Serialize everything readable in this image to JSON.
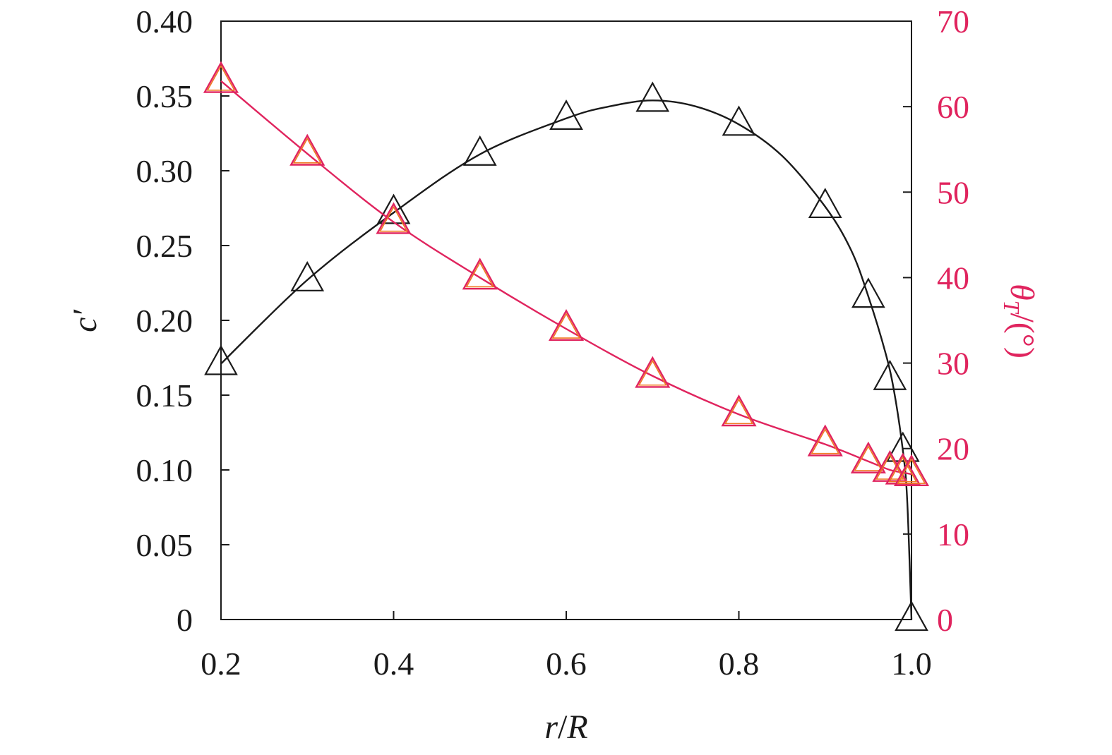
{
  "chart_data": {
    "type": "line",
    "title": "",
    "xlabel_parts": {
      "r": "r",
      "slash": "/",
      "R": "R"
    },
    "ylabel_left": "c′",
    "ylabel_right_parts": {
      "theta": "θ",
      "sub": "T",
      "rest": "/(°)"
    },
    "xlim": [
      0.2,
      1.0
    ],
    "ylim_left": [
      0,
      0.4
    ],
    "ylim_right": [
      0,
      70
    ],
    "x_ticks": [
      "0.2",
      "0.4",
      "0.6",
      "0.8",
      "1.0"
    ],
    "x_tick_values": [
      0.2,
      0.4,
      0.6,
      0.8,
      1.0
    ],
    "y_left_ticks": [
      "0",
      "0.05",
      "0.10",
      "0.15",
      "0.20",
      "0.25",
      "0.30",
      "0.35",
      "0.40"
    ],
    "y_left_tick_values": [
      0,
      0.05,
      0.1,
      0.15,
      0.2,
      0.25,
      0.3,
      0.35,
      0.4
    ],
    "y_right_ticks": [
      "0",
      "10",
      "20",
      "30",
      "40",
      "50",
      "60",
      "70"
    ],
    "y_right_tick_values": [
      0,
      10,
      20,
      30,
      40,
      50,
      60,
      70
    ],
    "grid": false,
    "series": [
      {
        "axis": "left",
        "color": "#1a1a1a",
        "marker": "triangle",
        "x": [
          0.2,
          0.3,
          0.4,
          0.5,
          0.6,
          0.7,
          0.8,
          0.9,
          0.95,
          0.975,
          0.99,
          1.0
        ],
        "y": [
          0.171,
          0.227,
          0.272,
          0.311,
          0.335,
          0.347,
          0.331,
          0.276,
          0.216,
          0.161,
          0.113,
          0.0
        ],
        "curve_x": [
          0.2,
          0.3,
          0.4,
          0.5,
          0.6,
          0.65,
          0.7,
          0.75,
          0.8,
          0.85,
          0.9,
          0.93,
          0.95,
          0.97,
          0.98,
          0.99,
          0.995,
          1.0
        ],
        "curve_y": [
          0.171,
          0.227,
          0.272,
          0.311,
          0.335,
          0.343,
          0.347,
          0.343,
          0.331,
          0.31,
          0.276,
          0.247,
          0.216,
          0.178,
          0.152,
          0.113,
          0.08,
          0.0
        ]
      },
      {
        "axis": "right",
        "color": "#e0245e",
        "marker_stroke": "#e0245e",
        "marker_inner": "#f07820",
        "marker": "triangle",
        "x": [
          0.2,
          0.3,
          0.4,
          0.5,
          0.6,
          0.7,
          0.8,
          0.9,
          0.95,
          0.975,
          0.99,
          1.0
        ],
        "y": [
          63.0,
          54.5,
          46.5,
          40.0,
          34.0,
          28.5,
          24.0,
          20.5,
          18.5,
          17.5,
          17.2,
          17.0
        ],
        "curve_x": [
          0.2,
          0.3,
          0.4,
          0.5,
          0.6,
          0.7,
          0.8,
          0.9,
          0.95,
          0.975,
          0.99,
          1.0
        ],
        "curve_y": [
          63.0,
          54.5,
          46.5,
          40.0,
          34.0,
          28.5,
          24.0,
          20.5,
          18.5,
          17.5,
          17.2,
          17.0
        ]
      }
    ]
  }
}
